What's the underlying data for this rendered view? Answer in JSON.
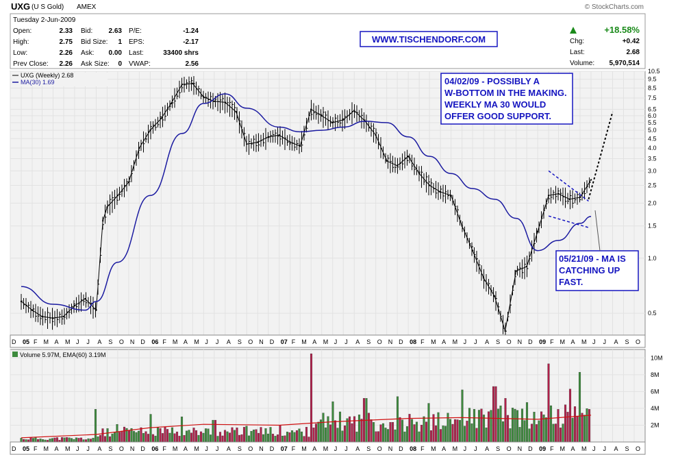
{
  "header": {
    "symbol": "UXG",
    "name": "(U S Gold)",
    "exchange": "AMEX",
    "watermark": "© StockCharts.com",
    "date": "Tuesday  2-Jun-2009",
    "stats": [
      {
        "label": "Open:",
        "value": "2.33"
      },
      {
        "label": "High:",
        "value": "2.75"
      },
      {
        "label": "Low:",
        "value": "2.26"
      },
      {
        "label": "Prev Close:",
        "value": "2.26"
      },
      {
        "label": "Bid:",
        "value": "2.63"
      },
      {
        "label": "Bid Size:",
        "value": "1"
      },
      {
        "label": "Ask:",
        "value": "0.00"
      },
      {
        "label": "Ask Size:",
        "value": "0"
      },
      {
        "label": "P/E:",
        "value": "-1.24"
      },
      {
        "label": "EPS:",
        "value": "-2.17"
      },
      {
        "label": "Last:",
        "value": "33400 shrs"
      },
      {
        "label": "VWAP:",
        "value": "2.56"
      }
    ],
    "change_pct": "+18.58%",
    "chg_label": "Chg:",
    "chg_value": "+0.42",
    "last_label": "Last:",
    "last_value": "2.68",
    "volume_label": "Volume:",
    "volume_value": "5,970,514",
    "website": "WWW.TISCHENDORF.COM"
  },
  "annotations": {
    "top": [
      "04/02/09 - POSSIBLY A",
      "W-BOTTOM IN THE MAKING.",
      "WEEKLY MA 30 WOULD",
      "OFFER GOOD SUPPORT."
    ],
    "bottom": [
      "05/21/09 - MA IS",
      "CATCHING UP",
      "FAST."
    ]
  },
  "colors": {
    "price": "#000000",
    "ma": "#1a1aa0",
    "vol_up": "#3d8a3d",
    "vol_down": "#b0204a",
    "ema": "#d01010",
    "annotation": "#1515c0",
    "up_arrow": "#1a8a1a",
    "grid": "#e2e2e2",
    "plot_bg": "#f2f2f2"
  },
  "chart_data": [
    {
      "type": "line",
      "title": "UXG (Weekly) 2.68",
      "legend": [
        {
          "name": "UXG (Weekly) 2.68",
          "color": "#000000"
        },
        {
          "name": "MA(30) 1.69",
          "color": "#1a1aa0"
        }
      ],
      "y_scale": "log",
      "ylim": [
        0.38,
        10.5
      ],
      "y_ticks": [
        0.5,
        1.0,
        1.5,
        2.0,
        2.5,
        3.0,
        3.5,
        4.0,
        4.5,
        5.0,
        5.5,
        6.0,
        6.5,
        7.5,
        8.5,
        9.5,
        10.5
      ],
      "x_range": [
        "2005-01",
        "2010-01"
      ],
      "x_tick_labels": [
        "D",
        "05",
        "F",
        "M",
        "A",
        "M",
        "J",
        "J",
        "A",
        "S",
        "O",
        "N",
        "D",
        "06",
        "F",
        "M",
        "A",
        "M",
        "J",
        "J",
        "A",
        "S",
        "O",
        "N",
        "D",
        "07",
        "F",
        "M",
        "A",
        "M",
        "J",
        "J",
        "A",
        "S",
        "O",
        "N",
        "D",
        "08",
        "F",
        "M",
        "A",
        "M",
        "J",
        "J",
        "A",
        "S",
        "O",
        "N",
        "D",
        "09",
        "F",
        "M",
        "A",
        "M",
        "J",
        "J",
        "A",
        "S",
        "O"
      ],
      "series": [
        {
          "name": "UXG (Weekly)",
          "x": [
            "2005-01",
            "2005-02",
            "2005-03",
            "2005-04",
            "2005-05",
            "2005-06",
            "2005-07",
            "2005-08",
            "2005-08-20",
            "2005-09",
            "2005-10",
            "2005-11",
            "2005-12",
            "2006-01",
            "2006-02",
            "2006-03",
            "2006-04",
            "2006-05",
            "2006-06",
            "2006-07",
            "2006-08",
            "2006-09",
            "2006-10",
            "2006-11",
            "2006-12",
            "2007-01",
            "2007-02",
            "2007-03",
            "2007-04",
            "2007-05",
            "2007-06",
            "2007-07",
            "2007-08",
            "2007-09",
            "2007-10",
            "2007-11",
            "2007-12",
            "2008-01",
            "2008-02",
            "2008-03",
            "2008-04",
            "2008-05",
            "2008-06",
            "2008-07",
            "2008-08",
            "2008-09",
            "2008-10",
            "2008-11",
            "2008-12",
            "2009-01",
            "2009-02",
            "2009-03",
            "2009-04",
            "2009-05",
            "2009-06"
          ],
          "values": [
            0.58,
            0.52,
            0.48,
            0.47,
            0.48,
            0.55,
            0.6,
            0.52,
            1.6,
            1.9,
            2.2,
            2.6,
            4.0,
            5.0,
            5.8,
            7.0,
            8.9,
            9.0,
            7.6,
            7.2,
            7.1,
            6.3,
            4.2,
            4.3,
            4.6,
            4.7,
            4.3,
            4.1,
            6.5,
            6.0,
            5.5,
            5.7,
            6.4,
            5.6,
            4.7,
            3.4,
            3.2,
            3.6,
            2.9,
            2.5,
            2.3,
            2.2,
            1.5,
            1.1,
            0.78,
            0.62,
            0.4,
            0.85,
            0.9,
            1.4,
            2.2,
            2.25,
            2.1,
            2.15,
            2.68
          ]
        },
        {
          "name": "MA(30)",
          "x": [
            "2005-01",
            "2005-04",
            "2005-07",
            "2005-08",
            "2005-10",
            "2006-01",
            "2006-04",
            "2006-06",
            "2006-08",
            "2006-10",
            "2007-01",
            "2007-03",
            "2007-05",
            "2007-07",
            "2007-09",
            "2007-11",
            "2008-01",
            "2008-03",
            "2008-05",
            "2008-07",
            "2008-09",
            "2008-11",
            "2009-01",
            "2009-03",
            "2009-05",
            "2009-06"
          ],
          "values": [
            0.7,
            0.56,
            0.52,
            0.58,
            0.95,
            2.2,
            4.8,
            7.0,
            7.9,
            6.6,
            5.2,
            4.9,
            5.0,
            5.2,
            5.6,
            5.5,
            4.6,
            3.6,
            2.9,
            2.4,
            2.1,
            1.65,
            1.1,
            1.25,
            1.55,
            1.69
          ]
        }
      ]
    },
    {
      "type": "bar",
      "title": "Volume 5.97M, EMA(60) 3.19M",
      "legend": [
        {
          "name": "Volume 5.97M",
          "color": "#3d8a3d"
        },
        {
          "name": "EMA(60) 3.19M",
          "color": "#d01010"
        }
      ],
      "y_ticks_labels": [
        "2M",
        "4M",
        "6M",
        "8M",
        "10M"
      ],
      "ylim": [
        0,
        11
      ],
      "series": [
        {
          "name": "Volume (M)",
          "x": [
            "2005-08",
            "2005-10",
            "2006-01",
            "2006-04",
            "2006-07",
            "2006-10",
            "2007-01",
            "2007-04",
            "2007-06",
            "2007-09",
            "2007-12",
            "2008-03",
            "2008-06",
            "2008-09",
            "2008-10",
            "2008-12",
            "2009-02",
            "2009-04",
            "2009-05",
            "2009-06"
          ],
          "values": [
            3.9,
            2.1,
            3.3,
            3.0,
            2.6,
            1.9,
            2.0,
            10.5,
            4.8,
            5.2,
            5.4,
            4.6,
            6.2,
            6.6,
            5.2,
            4.7,
            9.3,
            6.3,
            8.3,
            5.97
          ]
        },
        {
          "name": "EMA(60)",
          "x": [
            "2005-01",
            "2005-08",
            "2006-01",
            "2006-06",
            "2007-01",
            "2007-06",
            "2008-01",
            "2008-06",
            "2009-01",
            "2009-06"
          ],
          "values": [
            0.5,
            0.9,
            1.7,
            2.1,
            2.0,
            2.4,
            2.8,
            2.9,
            2.7,
            3.19
          ]
        }
      ]
    }
  ]
}
